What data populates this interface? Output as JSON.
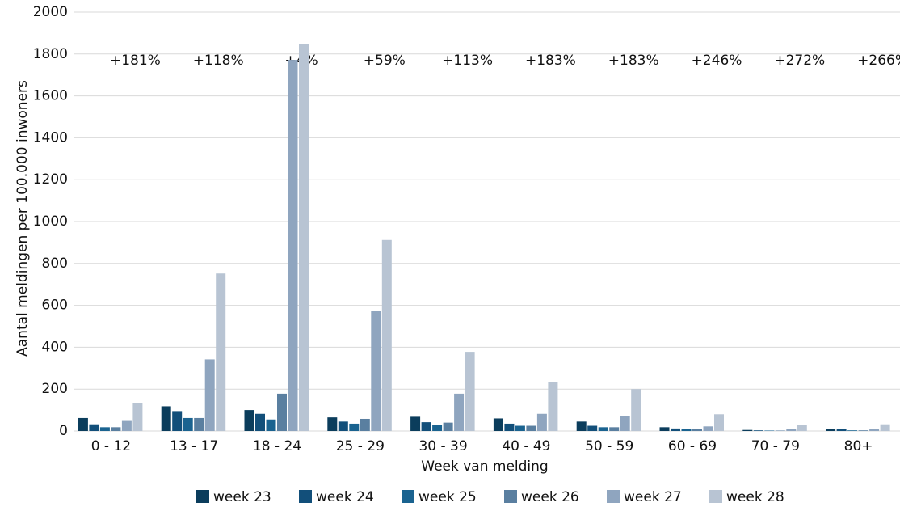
{
  "chart_data": {
    "type": "bar",
    "x_label": "Week van melding",
    "y_label": "Aantal meldingen per 100.000 inwoners",
    "categories": [
      "0 - 12",
      "13 - 17",
      "18 - 24",
      "25 - 29",
      "30 - 39",
      "40 - 49",
      "50 - 59",
      "60 - 69",
      "70 - 79",
      "80+"
    ],
    "annotations": [
      "+181%",
      "+118%",
      "+4%",
      "+59%",
      "+113%",
      "+183%",
      "+183%",
      "+246%",
      "+272%",
      "+266%"
    ],
    "series": [
      {
        "name": "week 23",
        "color": "#0b3d5c",
        "values": [
          62,
          118,
          100,
          65,
          68,
          60,
          45,
          18,
          5,
          10
        ]
      },
      {
        "name": "week 24",
        "color": "#124f7a",
        "values": [
          32,
          95,
          82,
          45,
          42,
          35,
          25,
          12,
          3,
          8
        ]
      },
      {
        "name": "week 25",
        "color": "#1a6390",
        "values": [
          18,
          62,
          55,
          35,
          30,
          25,
          18,
          8,
          2,
          3
        ]
      },
      {
        "name": "week 26",
        "color": "#5a7fa0",
        "values": [
          18,
          62,
          178,
          58,
          40,
          25,
          18,
          8,
          2,
          3
        ]
      },
      {
        "name": "week 27",
        "color": "#8fa5bf",
        "values": [
          48,
          342,
          1772,
          575,
          178,
          82,
          72,
          22,
          8,
          10
        ]
      },
      {
        "name": "week 28",
        "color": "#b8c4d3",
        "values": [
          135,
          752,
          1848,
          912,
          378,
          235,
          200,
          80,
          30,
          32
        ]
      }
    ],
    "ylim": [
      0,
      2000
    ],
    "yticks": [
      0,
      200,
      400,
      600,
      800,
      1000,
      1200,
      1400,
      1600,
      1800,
      2000
    ],
    "grid": true
  }
}
